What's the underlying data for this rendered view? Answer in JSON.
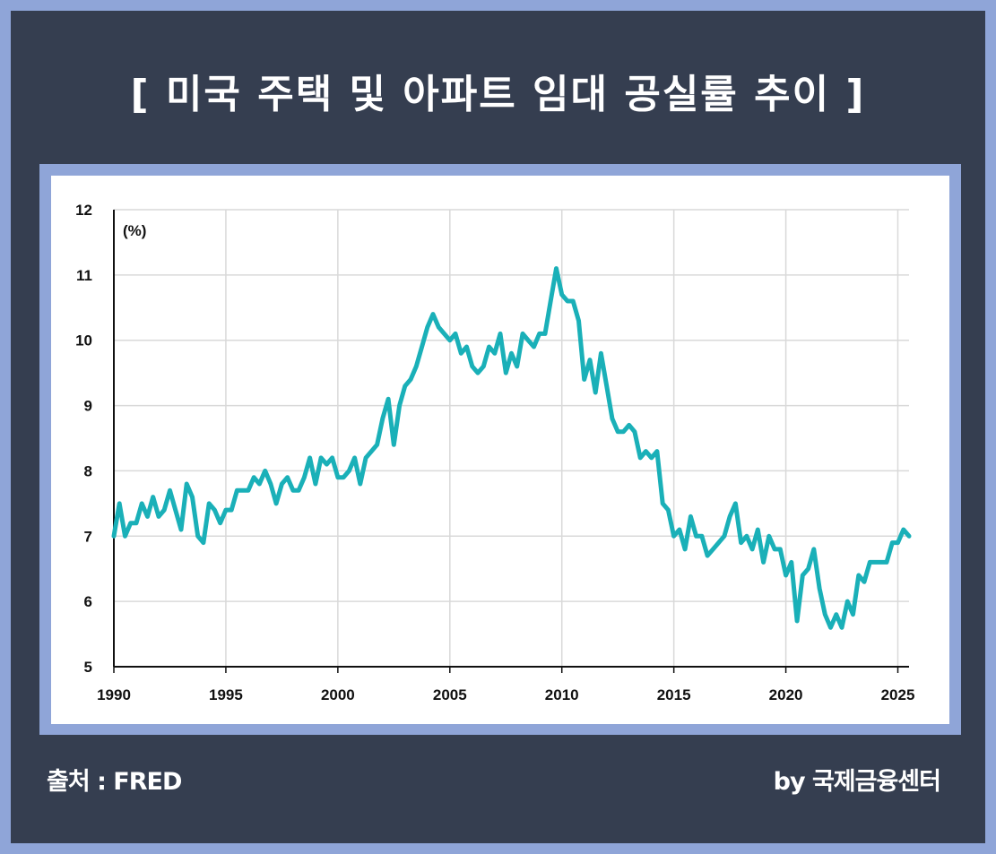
{
  "title": "[ 미국 주택 및 아파트 임대 공실률 추이 ]",
  "footer": {
    "source": "출처 : FRED",
    "credit": "by 국제금융센터"
  },
  "colors": {
    "line": "#1ab0b8",
    "panel": "#353e50",
    "frame": "#8fa5d8",
    "grid": "#d9d9d9"
  },
  "chart_data": {
    "type": "line",
    "title": "",
    "xlabel": "",
    "ylabel": "(%)",
    "xlim": [
      1990,
      2025.5
    ],
    "ylim": [
      5,
      12
    ],
    "x_ticks": [
      1990,
      1995,
      2000,
      2005,
      2010,
      2015,
      2020,
      2025
    ],
    "y_ticks": [
      5,
      6,
      7,
      8,
      9,
      10,
      11,
      12
    ],
    "grid": true,
    "series": [
      {
        "name": "",
        "points": [
          [
            1990.0,
            7.0
          ],
          [
            1990.25,
            7.5
          ],
          [
            1990.5,
            7.0
          ],
          [
            1990.75,
            7.2
          ],
          [
            1991.0,
            7.2
          ],
          [
            1991.25,
            7.5
          ],
          [
            1991.5,
            7.3
          ],
          [
            1991.75,
            7.6
          ],
          [
            1992.0,
            7.3
          ],
          [
            1992.25,
            7.4
          ],
          [
            1992.5,
            7.7
          ],
          [
            1992.75,
            7.4
          ],
          [
            1993.0,
            7.1
          ],
          [
            1993.25,
            7.8
          ],
          [
            1993.5,
            7.6
          ],
          [
            1993.75,
            7.0
          ],
          [
            1994.0,
            6.9
          ],
          [
            1994.25,
            7.5
          ],
          [
            1994.5,
            7.4
          ],
          [
            1994.75,
            7.2
          ],
          [
            1995.0,
            7.4
          ],
          [
            1995.25,
            7.4
          ],
          [
            1995.5,
            7.7
          ],
          [
            1995.75,
            7.7
          ],
          [
            1996.0,
            7.7
          ],
          [
            1996.25,
            7.9
          ],
          [
            1996.5,
            7.8
          ],
          [
            1996.75,
            8.0
          ],
          [
            1997.0,
            7.8
          ],
          [
            1997.25,
            7.5
          ],
          [
            1997.5,
            7.8
          ],
          [
            1997.75,
            7.9
          ],
          [
            1998.0,
            7.7
          ],
          [
            1998.25,
            7.7
          ],
          [
            1998.5,
            7.9
          ],
          [
            1998.75,
            8.2
          ],
          [
            1999.0,
            7.8
          ],
          [
            1999.25,
            8.2
          ],
          [
            1999.5,
            8.1
          ],
          [
            1999.75,
            8.2
          ],
          [
            2000.0,
            7.9
          ],
          [
            2000.25,
            7.9
          ],
          [
            2000.5,
            8.0
          ],
          [
            2000.75,
            8.2
          ],
          [
            2001.0,
            7.8
          ],
          [
            2001.25,
            8.2
          ],
          [
            2001.5,
            8.3
          ],
          [
            2001.75,
            8.4
          ],
          [
            2002.0,
            8.8
          ],
          [
            2002.25,
            9.1
          ],
          [
            2002.5,
            8.4
          ],
          [
            2002.75,
            9.0
          ],
          [
            2003.0,
            9.3
          ],
          [
            2003.25,
            9.4
          ],
          [
            2003.5,
            9.6
          ],
          [
            2003.75,
            9.9
          ],
          [
            2004.0,
            10.2
          ],
          [
            2004.25,
            10.4
          ],
          [
            2004.5,
            10.2
          ],
          [
            2004.75,
            10.1
          ],
          [
            2005.0,
            10.0
          ],
          [
            2005.25,
            10.1
          ],
          [
            2005.5,
            9.8
          ],
          [
            2005.75,
            9.9
          ],
          [
            2006.0,
            9.6
          ],
          [
            2006.25,
            9.5
          ],
          [
            2006.5,
            9.6
          ],
          [
            2006.75,
            9.9
          ],
          [
            2007.0,
            9.8
          ],
          [
            2007.25,
            10.1
          ],
          [
            2007.5,
            9.5
          ],
          [
            2007.75,
            9.8
          ],
          [
            2008.0,
            9.6
          ],
          [
            2008.25,
            10.1
          ],
          [
            2008.5,
            10.0
          ],
          [
            2008.75,
            9.9
          ],
          [
            2009.0,
            10.1
          ],
          [
            2009.25,
            10.1
          ],
          [
            2009.5,
            10.6
          ],
          [
            2009.75,
            11.1
          ],
          [
            2010.0,
            10.7
          ],
          [
            2010.25,
            10.6
          ],
          [
            2010.5,
            10.6
          ],
          [
            2010.75,
            10.3
          ],
          [
            2011.0,
            9.4
          ],
          [
            2011.25,
            9.7
          ],
          [
            2011.5,
            9.2
          ],
          [
            2011.75,
            9.8
          ],
          [
            2012.0,
            9.3
          ],
          [
            2012.25,
            8.8
          ],
          [
            2012.5,
            8.6
          ],
          [
            2012.75,
            8.6
          ],
          [
            2013.0,
            8.7
          ],
          [
            2013.25,
            8.6
          ],
          [
            2013.5,
            8.2
          ],
          [
            2013.75,
            8.3
          ],
          [
            2014.0,
            8.2
          ],
          [
            2014.25,
            8.3
          ],
          [
            2014.5,
            7.5
          ],
          [
            2014.75,
            7.4
          ],
          [
            2015.0,
            7.0
          ],
          [
            2015.25,
            7.1
          ],
          [
            2015.5,
            6.8
          ],
          [
            2015.75,
            7.3
          ],
          [
            2016.0,
            7.0
          ],
          [
            2016.25,
            7.0
          ],
          [
            2016.5,
            6.7
          ],
          [
            2016.75,
            6.8
          ],
          [
            2017.0,
            6.9
          ],
          [
            2017.25,
            7.0
          ],
          [
            2017.5,
            7.3
          ],
          [
            2017.75,
            7.5
          ],
          [
            2018.0,
            6.9
          ],
          [
            2018.25,
            7.0
          ],
          [
            2018.5,
            6.8
          ],
          [
            2018.75,
            7.1
          ],
          [
            2019.0,
            6.6
          ],
          [
            2019.25,
            7.0
          ],
          [
            2019.5,
            6.8
          ],
          [
            2019.75,
            6.8
          ],
          [
            2020.0,
            6.4
          ],
          [
            2020.25,
            6.6
          ],
          [
            2020.5,
            5.7
          ],
          [
            2020.75,
            6.4
          ],
          [
            2021.0,
            6.5
          ],
          [
            2021.25,
            6.8
          ],
          [
            2021.5,
            6.2
          ],
          [
            2021.75,
            5.8
          ],
          [
            2022.0,
            5.6
          ],
          [
            2022.25,
            5.8
          ],
          [
            2022.5,
            5.6
          ],
          [
            2022.75,
            6.0
          ],
          [
            2023.0,
            5.8
          ],
          [
            2023.25,
            6.4
          ],
          [
            2023.5,
            6.3
          ],
          [
            2023.75,
            6.6
          ],
          [
            2024.0,
            6.6
          ],
          [
            2024.25,
            6.6
          ],
          [
            2024.5,
            6.6
          ],
          [
            2024.75,
            6.9
          ],
          [
            2025.0,
            6.9
          ],
          [
            2025.25,
            7.1
          ],
          [
            2025.5,
            7.0
          ]
        ]
      }
    ]
  }
}
